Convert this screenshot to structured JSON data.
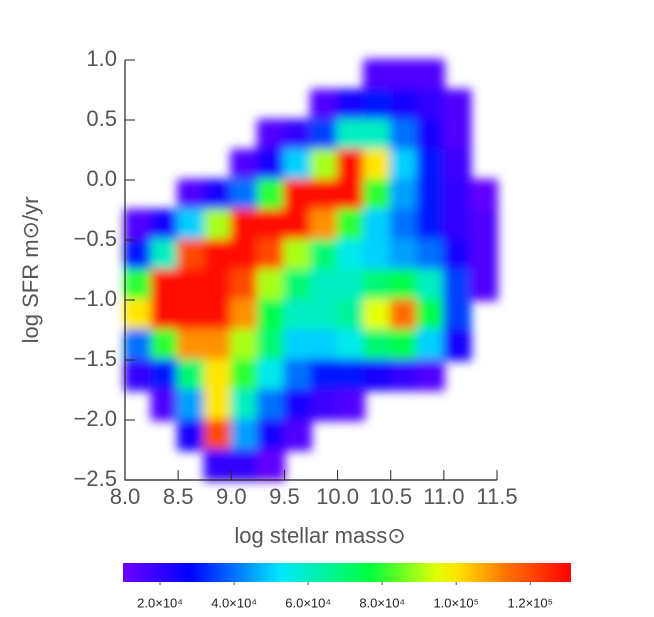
{
  "chart_data": {
    "type": "heatmap",
    "xlabel": "log stellar mass⊙",
    "ylabel": "log SFR m⊙/yr",
    "xlim": [
      8.0,
      11.5
    ],
    "ylim": [
      -2.5,
      1.0
    ],
    "xticks": [
      {
        "value": 8.0,
        "label": "8.0"
      },
      {
        "value": 8.5,
        "label": "8.5"
      },
      {
        "value": 9.0,
        "label": "9.0"
      },
      {
        "value": 9.5,
        "label": "9.5"
      },
      {
        "value": 10.0,
        "label": "10.0"
      },
      {
        "value": 10.5,
        "label": "10.5"
      },
      {
        "value": 11.0,
        "label": "11.0"
      },
      {
        "value": 11.5,
        "label": "11.5"
      }
    ],
    "yticks": [
      {
        "value": -2.5,
        "label": "−2.5"
      },
      {
        "value": -2.0,
        "label": "−2.0"
      },
      {
        "value": -1.5,
        "label": "−1.5"
      },
      {
        "value": -1.0,
        "label": "−1.0"
      },
      {
        "value": -0.5,
        "label": "−0.5"
      },
      {
        "value": 0.0,
        "label": "0.0"
      },
      {
        "value": 0.5,
        "label": "0.5"
      },
      {
        "value": 1.0,
        "label": "1.0"
      }
    ],
    "x": [
      8.125,
      8.375,
      8.625,
      8.875,
      9.125,
      9.375,
      9.625,
      9.875,
      10.125,
      10.375,
      10.625,
      10.875,
      11.125,
      11.375
    ],
    "y": [
      0.875,
      0.625,
      0.375,
      0.125,
      -0.125,
      -0.375,
      -0.625,
      -0.875,
      -1.125,
      -1.375,
      -1.625,
      -1.875,
      -2.125,
      -2.375
    ],
    "z": [
      [
        null,
        null,
        null,
        null,
        null,
        null,
        null,
        null,
        null,
        15000,
        15000,
        15000,
        null,
        null
      ],
      [
        null,
        null,
        null,
        null,
        null,
        null,
        null,
        15000,
        25000,
        30000,
        25000,
        20000,
        15000,
        null
      ],
      [
        null,
        null,
        null,
        null,
        null,
        15000,
        20000,
        35000,
        60000,
        60000,
        40000,
        25000,
        15000,
        null
      ],
      [
        null,
        null,
        null,
        null,
        15000,
        25000,
        50000,
        90000,
        130000,
        100000,
        50000,
        30000,
        18000,
        null
      ],
      [
        null,
        null,
        15000,
        25000,
        40000,
        80000,
        130000,
        130000,
        130000,
        80000,
        45000,
        30000,
        20000,
        12000
      ],
      [
        15000,
        25000,
        50000,
        90000,
        130000,
        130000,
        130000,
        110000,
        80000,
        50000,
        40000,
        30000,
        20000,
        15000
      ],
      [
        30000,
        60000,
        120000,
        130000,
        130000,
        120000,
        90000,
        70000,
        55000,
        50000,
        45000,
        40000,
        25000,
        15000
      ],
      [
        80000,
        130000,
        130000,
        130000,
        120000,
        90000,
        70000,
        60000,
        60000,
        70000,
        75000,
        60000,
        35000,
        15000
      ],
      [
        100000,
        130000,
        130000,
        130000,
        110000,
        75000,
        60000,
        60000,
        65000,
        95000,
        115000,
        75000,
        35000,
        null
      ],
      [
        40000,
        80000,
        110000,
        110000,
        90000,
        70000,
        50000,
        50000,
        55000,
        70000,
        75000,
        50000,
        25000,
        null
      ],
      [
        20000,
        30000,
        70000,
        100000,
        80000,
        55000,
        40000,
        30000,
        30000,
        25000,
        20000,
        15000,
        null,
        null
      ],
      [
        null,
        15000,
        45000,
        100000,
        60000,
        40000,
        25000,
        18000,
        15000,
        null,
        null,
        null,
        null,
        null
      ],
      [
        null,
        null,
        25000,
        120000,
        45000,
        25000,
        15000,
        null,
        null,
        null,
        null,
        null,
        null,
        null
      ],
      [
        null,
        null,
        null,
        20000,
        20000,
        12000,
        null,
        null,
        null,
        null,
        null,
        null,
        null,
        null
      ]
    ],
    "clim": [
      10000,
      131000
    ],
    "cticks": [
      {
        "value": 20000,
        "label": "2.0×10⁴"
      },
      {
        "value": 40000,
        "label": "4.0×10⁴"
      },
      {
        "value": 60000,
        "label": "6.0×10⁴"
      },
      {
        "value": 80000,
        "label": "8.0×10⁴"
      },
      {
        "value": 100000,
        "label": "1.0×10⁵"
      },
      {
        "value": 120000,
        "label": "1.2×10⁵"
      }
    ]
  }
}
